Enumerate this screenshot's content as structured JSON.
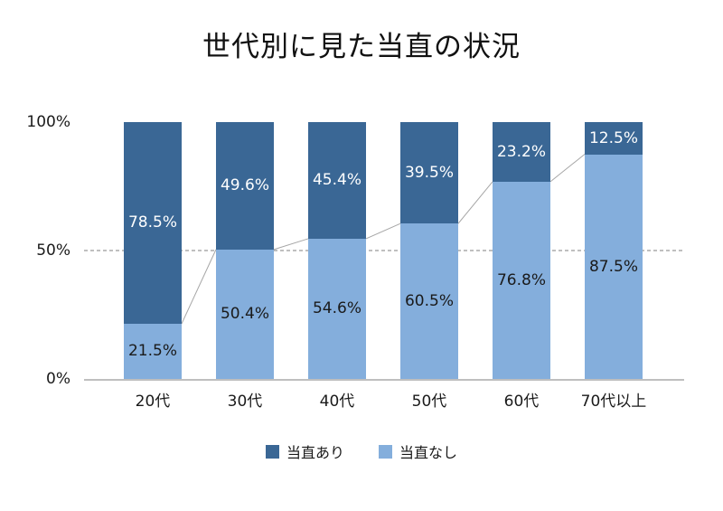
{
  "title": "世代別に見た当直の状況",
  "colors": {
    "series_dark": "#3A6795",
    "series_light": "#84AEDC",
    "label_on_dark": "#FFFFFF",
    "label_on_light": "#1A1A1A",
    "baseline": "#BFBFBF",
    "gridline": "#7F7F7F",
    "connector_line": "#A6A6A6"
  },
  "y_axis": {
    "ticks": [
      {
        "label": "100%",
        "value": 100
      },
      {
        "label": "50%",
        "value": 50
      },
      {
        "label": "0%",
        "value": 0
      }
    ]
  },
  "legend": {
    "items": [
      {
        "label": "当直あり",
        "color_key": "series_dark"
      },
      {
        "label": "当直なし",
        "color_key": "series_light"
      }
    ]
  },
  "chart_data": {
    "type": "bar",
    "stacked": true,
    "unit": "%",
    "title": "世代別に見た当直の状況",
    "categories": [
      "20代",
      "30代",
      "40代",
      "50代",
      "60代",
      "70代以上"
    ],
    "series": [
      {
        "name": "当直あり",
        "color": "#3A6795",
        "label_color": "#FFFFFF",
        "values": [
          78.5,
          49.6,
          45.4,
          39.5,
          23.2,
          12.5
        ],
        "labels": [
          "78.5%",
          "49.6%",
          "45.4%",
          "39.5%",
          "23.2%",
          "12.5%"
        ]
      },
      {
        "name": "当直なし",
        "color": "#84AEDC",
        "label_color": "#1A1A1A",
        "values": [
          21.5,
          50.4,
          54.6,
          60.5,
          76.8,
          87.5
        ],
        "labels": [
          "21.5%",
          "50.4%",
          "54.6%",
          "60.5%",
          "76.8%",
          "87.5%"
        ]
      }
    ],
    "ylim": [
      0,
      100
    ],
    "gridlines": {
      "y50_dashed": true
    },
    "series_connector_lines": true,
    "legend_position": "bottom"
  }
}
